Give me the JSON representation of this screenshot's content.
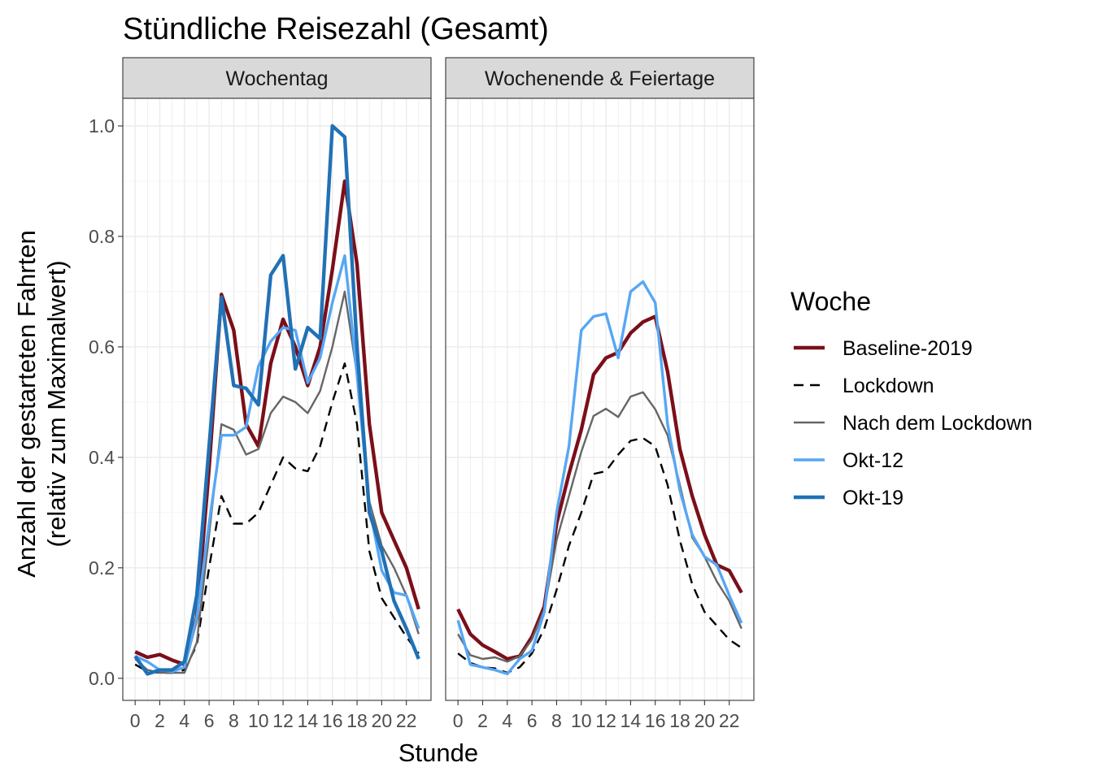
{
  "chart_data": {
    "type": "line",
    "title": "Stündliche Reisezahl (Gesamt)",
    "xlabel": "Stunde",
    "ylabel_line1": "Anzahl der gestarteten Fahrten",
    "ylabel_line2": "(relativ zum Maximalwert)",
    "xlim": [
      -1,
      24
    ],
    "ylim": [
      -0.04,
      1.05
    ],
    "x_ticks": [
      0,
      2,
      4,
      6,
      8,
      10,
      12,
      14,
      16,
      18,
      20,
      22
    ],
    "y_ticks": [
      0.0,
      0.2,
      0.4,
      0.6,
      0.8,
      1.0
    ],
    "y_tick_labels": [
      "0.0",
      "0.2",
      "0.4",
      "0.6",
      "0.8",
      "1.0"
    ],
    "grid": true,
    "legend": {
      "title": "Woche",
      "position": "right",
      "entries": [
        "Baseline-2019",
        "Lockdown",
        "Nach dem Lockdown",
        "Okt-12",
        "Okt-19"
      ]
    },
    "series_styles": [
      {
        "name": "Baseline-2019",
        "color": "#7b0f19",
        "dash": "solid",
        "weight": "thick"
      },
      {
        "name": "Lockdown",
        "color": "#000000",
        "dash": "dashed",
        "weight": "normal"
      },
      {
        "name": "Nach dem Lockdown",
        "color": "#666666",
        "dash": "solid",
        "weight": "normal"
      },
      {
        "name": "Okt-12",
        "color": "#56a7f5",
        "dash": "solid",
        "weight": "medium"
      },
      {
        "name": "Okt-19",
        "color": "#2171b5",
        "dash": "solid",
        "weight": "thick"
      }
    ],
    "panels": [
      {
        "label": "Wochentag",
        "x": [
          0,
          1,
          2,
          3,
          4,
          5,
          6,
          7,
          8,
          9,
          10,
          11,
          12,
          13,
          14,
          15,
          16,
          17,
          18,
          19,
          20,
          21,
          22,
          23
        ],
        "series": [
          {
            "name": "Baseline-2019",
            "values": [
              0.048,
              0.038,
              0.043,
              0.033,
              0.025,
              0.11,
              0.38,
              0.695,
              0.63,
              0.46,
              0.42,
              0.57,
              0.65,
              0.6,
              0.53,
              0.6,
              0.74,
              0.9,
              0.75,
              0.46,
              0.3,
              0.25,
              0.2,
              0.125
            ]
          },
          {
            "name": "Lockdown",
            "values": [
              0.025,
              0.012,
              0.01,
              0.01,
              0.015,
              0.06,
              0.2,
              0.33,
              0.28,
              0.28,
              0.3,
              0.35,
              0.4,
              0.38,
              0.375,
              0.42,
              0.5,
              0.57,
              0.46,
              0.23,
              0.145,
              0.11,
              0.075,
              0.045
            ]
          },
          {
            "name": "Nach dem Lockdown",
            "values": [
              0.035,
              0.015,
              0.01,
              0.01,
              0.01,
              0.065,
              0.26,
              0.46,
              0.45,
              0.405,
              0.415,
              0.48,
              0.51,
              0.5,
              0.48,
              0.52,
              0.6,
              0.7,
              0.55,
              0.32,
              0.24,
              0.2,
              0.15,
              0.08
            ]
          },
          {
            "name": "Okt-12",
            "values": [
              0.04,
              0.03,
              0.015,
              0.012,
              0.02,
              0.11,
              0.28,
              0.44,
              0.44,
              0.455,
              0.565,
              0.61,
              0.635,
              0.63,
              0.535,
              0.58,
              0.68,
              0.765,
              0.55,
              0.31,
              0.195,
              0.155,
              0.15,
              0.09
            ]
          },
          {
            "name": "Okt-19",
            "values": [
              0.04,
              0.008,
              0.015,
              0.015,
              0.03,
              0.15,
              0.42,
              0.69,
              0.53,
              0.525,
              0.495,
              0.73,
              0.765,
              0.56,
              0.635,
              0.615,
              1.0,
              0.98,
              0.6,
              0.3,
              0.23,
              0.14,
              0.09,
              0.035
            ]
          }
        ]
      },
      {
        "label": "Wochenende & Feiertage",
        "x": [
          0,
          1,
          2,
          3,
          4,
          5,
          6,
          7,
          8,
          9,
          10,
          11,
          12,
          13,
          14,
          15,
          16,
          17,
          18,
          19,
          20,
          21,
          22,
          23
        ],
        "series": [
          {
            "name": "Baseline-2019",
            "values": [
              0.125,
              0.08,
              0.06,
              0.048,
              0.035,
              0.04,
              0.075,
              0.13,
              0.28,
              0.37,
              0.45,
              0.55,
              0.58,
              0.59,
              0.625,
              0.645,
              0.655,
              0.555,
              0.415,
              0.33,
              0.26,
              0.205,
              0.195,
              0.155
            ]
          },
          {
            "name": "Lockdown",
            "values": [
              0.045,
              0.028,
              0.02,
              0.018,
              0.01,
              0.02,
              0.045,
              0.09,
              0.16,
              0.24,
              0.3,
              0.37,
              0.375,
              0.405,
              0.43,
              0.435,
              0.42,
              0.35,
              0.25,
              0.17,
              0.12,
              0.095,
              0.07,
              0.055
            ]
          },
          {
            "name": "Nach dem Lockdown",
            "values": [
              0.08,
              0.042,
              0.035,
              0.038,
              0.03,
              0.04,
              0.07,
              0.125,
              0.25,
              0.33,
              0.41,
              0.475,
              0.488,
              0.473,
              0.51,
              0.518,
              0.487,
              0.44,
              0.35,
              0.255,
              0.22,
              0.175,
              0.14,
              0.09
            ]
          },
          {
            "name": "Okt-12",
            "values": [
              0.105,
              0.025,
              0.02,
              0.015,
              0.008,
              0.035,
              0.05,
              0.12,
              0.3,
              0.42,
              0.63,
              0.655,
              0.66,
              0.58,
              0.7,
              0.718,
              0.68,
              0.46,
              0.34,
              0.26,
              0.22,
              0.205,
              0.15,
              0.1
            ]
          }
        ]
      }
    ]
  }
}
